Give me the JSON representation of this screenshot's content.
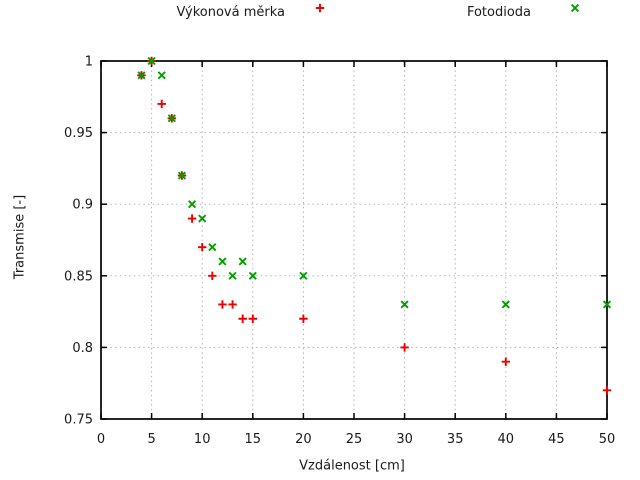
{
  "chart_data": {
    "type": "scatter",
    "title": "",
    "xlabel": "Vzdálenost [cm]",
    "ylabel": "Transmise [-]",
    "xlim": [
      0,
      50
    ],
    "ylim": [
      0.75,
      1.0
    ],
    "xticks": [
      0,
      5,
      10,
      15,
      20,
      25,
      30,
      35,
      40,
      45,
      50
    ],
    "xtick_labels": [
      "0",
      "5",
      "10",
      "15",
      "20",
      "25",
      "30",
      "35",
      "40",
      "45",
      "50"
    ],
    "yticks": [
      0.75,
      0.8,
      0.85,
      0.9,
      0.95,
      1
    ],
    "ytick_labels": [
      "0.75",
      "0.8",
      "0.85",
      "0.9",
      "0.95",
      "1"
    ],
    "grid": true,
    "grid_style": "dotted",
    "legend_position": "above",
    "series": [
      {
        "name": "Výkonová měrka",
        "marker": "plus",
        "color": "#ee0000",
        "x": [
          4,
          5,
          6,
          7,
          8,
          9,
          10,
          11,
          12,
          13,
          14,
          15,
          20,
          30,
          40,
          50
        ],
        "y": [
          0.99,
          1.0,
          0.97,
          0.96,
          0.92,
          0.89,
          0.87,
          0.85,
          0.83,
          0.83,
          0.82,
          0.82,
          0.82,
          0.8,
          0.79,
          0.77
        ]
      },
      {
        "name": "Fotodioda",
        "marker": "cross",
        "color": "#00a000",
        "x": [
          4,
          5,
          6,
          7,
          8,
          9,
          10,
          11,
          12,
          13,
          14,
          15,
          20,
          30,
          40,
          50
        ],
        "y": [
          0.99,
          1.0,
          0.99,
          0.96,
          0.92,
          0.9,
          0.89,
          0.87,
          0.86,
          0.85,
          0.86,
          0.85,
          0.85,
          0.83,
          0.83,
          0.83
        ]
      }
    ],
    "colors": {
      "border": "#000000",
      "grid": "#b3b3b3",
      "text": "#1a1a1a",
      "background": "#ffffff"
    }
  }
}
